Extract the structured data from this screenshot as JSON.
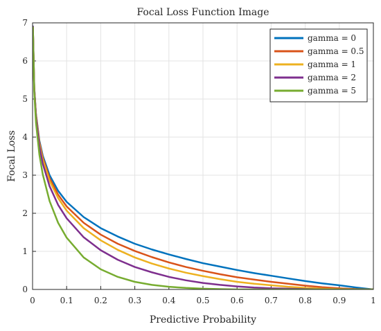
{
  "chart_data": {
    "type": "line",
    "title": "Focal Loss Function Image",
    "xlabel": "Predictive Probability",
    "ylabel": "Focal Loss",
    "xlim": [
      0,
      1
    ],
    "ylim": [
      0,
      7
    ],
    "xticks": [
      "0",
      "0.1",
      "0.2",
      "0.3",
      "0.4",
      "0.5",
      "0.6",
      "0.7",
      "0.8",
      "0.9",
      "1"
    ],
    "yticks": [
      "0",
      "1",
      "2",
      "3",
      "4",
      "5",
      "6",
      "7"
    ],
    "grid": true,
    "legend_position": "top-right",
    "x": [
      0.001,
      0.005,
      0.01,
      0.02,
      0.03,
      0.05,
      0.075,
      0.1,
      0.15,
      0.2,
      0.25,
      0.3,
      0.35,
      0.4,
      0.45,
      0.5,
      0.55,
      0.6,
      0.65,
      0.7,
      0.75,
      0.8,
      0.85,
      0.9,
      0.95,
      1.0
    ],
    "series": [
      {
        "name": "gamma = 0",
        "color": "#0072BD",
        "values": [
          6.91,
          5.3,
          4.61,
          3.91,
          3.51,
          3.0,
          2.59,
          2.3,
          1.9,
          1.61,
          1.39,
          1.2,
          1.05,
          0.92,
          0.8,
          0.69,
          0.6,
          0.51,
          0.43,
          0.36,
          0.29,
          0.22,
          0.16,
          0.11,
          0.05,
          0.0
        ]
      },
      {
        "name": "gamma = 0.5",
        "color": "#D95319",
        "values": [
          6.9,
          5.29,
          4.59,
          3.87,
          3.46,
          2.92,
          2.49,
          2.18,
          1.75,
          1.44,
          1.2,
          1.01,
          0.85,
          0.71,
          0.59,
          0.49,
          0.4,
          0.32,
          0.26,
          0.2,
          0.15,
          0.1,
          0.06,
          0.03,
          0.01,
          0.0
        ]
      },
      {
        "name": "gamma = 1",
        "color": "#EDB120",
        "values": [
          6.9,
          5.27,
          4.56,
          3.83,
          3.4,
          2.85,
          2.4,
          2.07,
          1.61,
          1.29,
          1.04,
          0.84,
          0.68,
          0.55,
          0.44,
          0.35,
          0.27,
          0.2,
          0.15,
          0.11,
          0.07,
          0.04,
          0.02,
          0.01,
          0.0,
          0.0
        ]
      },
      {
        "name": "gamma = 2",
        "color": "#7E2F8E",
        "values": [
          6.9,
          5.25,
          4.52,
          3.76,
          3.3,
          2.71,
          2.22,
          1.87,
          1.37,
          1.03,
          0.78,
          0.59,
          0.45,
          0.33,
          0.24,
          0.17,
          0.12,
          0.08,
          0.05,
          0.03,
          0.02,
          0.01,
          0.0,
          0.0,
          0.0,
          0.0
        ]
      },
      {
        "name": "gamma = 5",
        "color": "#77AC30",
        "values": [
          6.88,
          5.17,
          4.38,
          3.54,
          3.02,
          2.32,
          1.75,
          1.36,
          0.84,
          0.53,
          0.33,
          0.2,
          0.12,
          0.07,
          0.04,
          0.02,
          0.01,
          0.0,
          0.0,
          0.0,
          0.0,
          0.0,
          0.0,
          0.0,
          0.0,
          0.0
        ]
      }
    ]
  }
}
